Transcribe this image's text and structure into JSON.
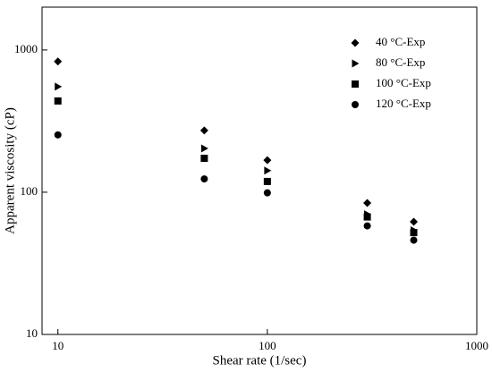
{
  "chart_data": {
    "type": "scatter",
    "x_label": "Shear rate (1/sec)",
    "y_label": "Apparent viscosity (cP)",
    "xscale": "log",
    "yscale": "log",
    "xlim": [
      8.4,
      1000
    ],
    "ylim": [
      10,
      2000
    ],
    "xticks": [
      10,
      100,
      1000
    ],
    "yticks": [
      10,
      100,
      1000
    ],
    "legend": "upper right",
    "series": [
      {
        "name": "40 °C-Exp",
        "color": "#000000",
        "marker": "diamond",
        "x": [
          10,
          50,
          100,
          300,
          500
        ],
        "values": [
          830,
          272,
          168,
          84,
          62
        ]
      },
      {
        "name": "80 °C-Exp",
        "color": "#000000",
        "marker": "triangle-right",
        "x": [
          10,
          50,
          100,
          300,
          500
        ],
        "values": [
          552,
          203,
          142,
          70,
          54
        ]
      },
      {
        "name": "100 °C-Exp",
        "color": "#000000",
        "marker": "square",
        "x": [
          10,
          50,
          100,
          300,
          500
        ],
        "values": [
          438,
          173,
          119,
          67,
          52
        ]
      },
      {
        "name": "120 °C-Exp",
        "color": "#000000",
        "marker": "circle",
        "x": [
          10,
          50,
          100,
          300,
          500
        ],
        "values": [
          253,
          124,
          99,
          58,
          46
        ]
      }
    ]
  }
}
